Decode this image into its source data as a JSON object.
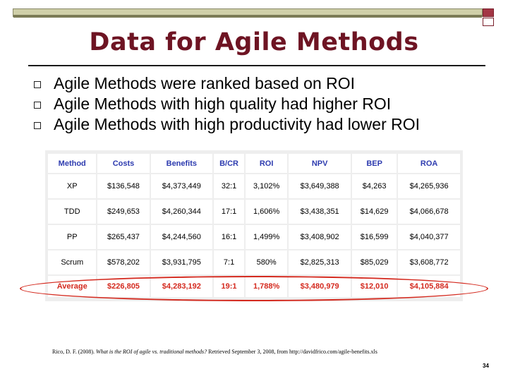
{
  "title": "Data for Agile Methods",
  "bullets": [
    "Agile Methods were ranked based on ROI",
    "Agile Methods with high quality had higher ROI",
    "Agile Methods with high productivity had lower ROI"
  ],
  "table": {
    "headers": [
      "Method",
      "Costs",
      "Benefits",
      "B/CR",
      "ROI",
      "NPV",
      "BEP",
      "ROA"
    ],
    "rows": [
      [
        "XP",
        "$136,548",
        "$4,373,449",
        "32:1",
        "3,102%",
        "$3,649,388",
        "$4,263",
        "$4,265,936"
      ],
      [
        "TDD",
        "$249,653",
        "$4,260,344",
        "17:1",
        "1,606%",
        "$3,438,351",
        "$14,629",
        "$4,066,678"
      ],
      [
        "PP",
        "$265,437",
        "$4,244,560",
        "16:1",
        "1,499%",
        "$3,408,902",
        "$16,599",
        "$4,040,377"
      ],
      [
        "Scrum",
        "$578,202",
        "$3,931,795",
        "7:1",
        "580%",
        "$2,825,313",
        "$85,029",
        "$3,608,772"
      ]
    ],
    "average": [
      "Average",
      "$226,805",
      "$4,283,192",
      "19:1",
      "1,788%",
      "$3,480,979",
      "$12,010",
      "$4,105,884"
    ]
  },
  "citation": {
    "prefix": "Rico, D. F. (2008). ",
    "italic": "What is the ROI of agile vs. traditional methods?",
    "suffix": " Retrieved September 3, 2008, from http://davidfrico.com/agile-benefits.xls"
  },
  "page_number": "34",
  "colors": {
    "title": "#6e1423",
    "header_text": "#2d3baf",
    "highlight": "#d42a1f",
    "top_bar": "#cfcfa8"
  }
}
